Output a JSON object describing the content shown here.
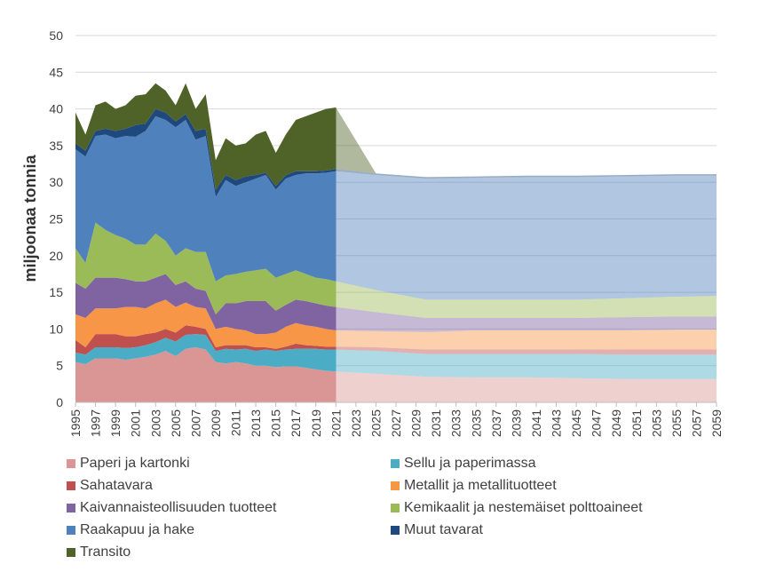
{
  "chart_data": {
    "type": "area",
    "stacked": true,
    "y_label": "miljoonaa tonnia",
    "x": [
      1995,
      1996,
      1997,
      1998,
      1999,
      2000,
      2001,
      2002,
      2003,
      2004,
      2005,
      2006,
      2007,
      2008,
      2009,
      2010,
      2011,
      2012,
      2013,
      2014,
      2015,
      2016,
      2017,
      2018,
      2019,
      2020,
      2021,
      2025,
      2030,
      2035,
      2040,
      2045,
      2050,
      2055,
      2059
    ],
    "projection_from": 2021,
    "xlim": [
      1995,
      2059
    ],
    "xticks": [
      1995,
      1997,
      1999,
      2001,
      2003,
      2005,
      2007,
      2009,
      2011,
      2013,
      2015,
      2017,
      2019,
      2021,
      2023,
      2025,
      2027,
      2029,
      2031,
      2033,
      2035,
      2037,
      2039,
      2041,
      2043,
      2045,
      2047,
      2049,
      2051,
      2053,
      2055,
      2057,
      2059
    ],
    "ylim": [
      0,
      50
    ],
    "yticks": [
      0,
      5,
      10,
      15,
      20,
      25,
      30,
      35,
      40,
      45,
      50
    ],
    "grid": true,
    "series": [
      {
        "name": "Paperi ja kartonki",
        "color": "#d99694",
        "values": [
          5.5,
          5.2,
          6,
          6,
          6,
          5.8,
          6,
          6.2,
          6.5,
          7,
          6.3,
          7.3,
          7.5,
          7.2,
          5.5,
          5.3,
          5.5,
          5.3,
          5,
          5,
          4.8,
          4.9,
          4.9,
          4.7,
          4.5,
          4.3,
          4.2,
          3.9,
          3.5,
          3.4,
          3.4,
          3.3,
          3.2,
          3.2,
          3.2
        ]
      },
      {
        "name": "Sellu ja paperimassa",
        "color": "#4bacc6",
        "values": [
          1.3,
          1.3,
          1.5,
          1.5,
          1.5,
          1.6,
          1.5,
          1.6,
          1.7,
          1.8,
          2.0,
          1.9,
          1.8,
          2.0,
          1.5,
          2.0,
          1.7,
          2.0,
          2.0,
          2.2,
          2.2,
          2.3,
          2.4,
          2.6,
          2.8,
          2.9,
          3.0,
          3.1,
          3.1,
          3.2,
          3.2,
          3.3,
          3.3,
          3.3,
          3.3
        ]
      },
      {
        "name": "Sahatavara",
        "color": "#c0504d",
        "values": [
          1.7,
          1.0,
          1.8,
          1.8,
          1.8,
          1.6,
          1.5,
          1.5,
          1.3,
          1.2,
          1.2,
          1.3,
          1.0,
          0.8,
          0.5,
          0.5,
          0.6,
          0.5,
          0.5,
          0.3,
          0.3,
          0.4,
          0.7,
          0.5,
          0.4,
          0.4,
          0.4,
          0.5,
          0.6,
          0.6,
          0.6,
          0.6,
          0.7,
          0.7,
          0.7
        ]
      },
      {
        "name": "Metallit ja metallituotteet",
        "color": "#f79646",
        "values": [
          3.5,
          4.0,
          3.5,
          3.5,
          3.5,
          4.0,
          4.0,
          3.5,
          4.0,
          4.0,
          3.5,
          3.1,
          2.7,
          2.8,
          2.5,
          2.5,
          2.2,
          2.0,
          1.8,
          1.8,
          2.2,
          2.7,
          2.8,
          2.7,
          2.6,
          2.4,
          2.2,
          2.2,
          2.4,
          2.6,
          2.6,
          2.6,
          2.6,
          2.7,
          2.7
        ]
      },
      {
        "name": "Kaivannaisteollisuuden tuotteet",
        "color": "#8064a2",
        "values": [
          4.3,
          4.0,
          4.2,
          4.2,
          4.2,
          3.8,
          3.5,
          3.7,
          3.5,
          3.5,
          3.0,
          2.9,
          2.5,
          2.4,
          2.0,
          3.2,
          3.5,
          4.0,
          4.5,
          4.5,
          3.0,
          3.0,
          3.2,
          3.3,
          3.2,
          3.2,
          3.2,
          2.6,
          1.9,
          1.7,
          1.7,
          1.7,
          1.8,
          1.8,
          1.8
        ]
      },
      {
        "name": "Kemikaalit ja nestemäiset polttoaineet",
        "color": "#9bbb59",
        "values": [
          4.7,
          3.5,
          7.5,
          6.5,
          5.8,
          5.5,
          5.0,
          5.0,
          6.0,
          4.5,
          4.0,
          4.5,
          5.0,
          5.3,
          4.5,
          3.8,
          4.0,
          4.0,
          4.2,
          4.4,
          4.5,
          4.2,
          4.0,
          3.7,
          3.5,
          3.6,
          3.5,
          3.0,
          2.5,
          2.5,
          2.5,
          2.5,
          2.6,
          2.7,
          2.8
        ]
      },
      {
        "name": "Raakapuu ja hake",
        "color": "#4f81bd",
        "values": [
          13.5,
          14.5,
          11.8,
          13.0,
          13.2,
          14.0,
          14.7,
          15.5,
          16.0,
          16.5,
          17.5,
          17.5,
          15.3,
          15.8,
          11.5,
          13.0,
          12.0,
          12.2,
          12.5,
          12.8,
          12.0,
          13.0,
          13.0,
          13.7,
          14.2,
          14.5,
          15.0,
          15.7,
          16.5,
          16.6,
          16.7,
          16.7,
          16.6,
          16.5,
          16.4
        ]
      },
      {
        "name": "Muut tavarat",
        "color": "#1f497d",
        "values": [
          0.8,
          0.8,
          0.7,
          0.8,
          1.0,
          1.0,
          1.6,
          1.0,
          1.0,
          1.0,
          0.8,
          0.8,
          1.2,
          1.0,
          1.0,
          0.7,
          0.8,
          0.8,
          0.5,
          0.3,
          0.5,
          0.5,
          0.5,
          0.3,
          0.3,
          0.3,
          0.3,
          0.2,
          0.2,
          0.2,
          0.2,
          0.2,
          0.2,
          0.2,
          0.2
        ]
      },
      {
        "name": "Transito",
        "color": "#4f6228",
        "values": [
          4.2,
          2.2,
          3.5,
          3.7,
          3.0,
          3.2,
          4.0,
          4.0,
          3.5,
          3.0,
          2.2,
          4.2,
          3.0,
          4.7,
          4.0,
          5.0,
          4.7,
          4.5,
          5.5,
          5.7,
          4.5,
          5.5,
          7.0,
          7.5,
          8.0,
          8.4,
          8.4,
          0,
          0,
          0,
          0,
          0,
          0,
          0,
          0
        ]
      }
    ]
  }
}
